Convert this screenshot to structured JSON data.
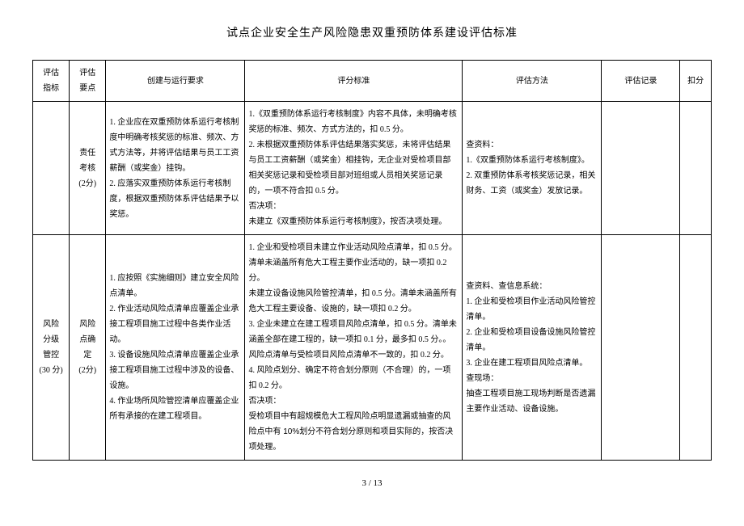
{
  "title": "试点企业安全生产风险隐患双重预防体系建设评估标准",
  "footer": "3  /  13",
  "headers": {
    "indicator": "评估\n指标",
    "point": "评估\n要点",
    "build": "创建与运行要求",
    "score": "评分标准",
    "method": "评估方法",
    "record": "评估记录",
    "deduct": "扣分"
  },
  "rows": [
    {
      "indicator": "",
      "point": "责任\n考核\n(2分)",
      "build": "1. 企业应在双重预防体系运行考核制度中明确考核奖惩的标准、频次、方式方法等，并将评估结果与员工工资薪酬（或奖金）挂钩。\n2. 应落实双重预防体系运行考核制度，根据双重预防体系评估结果予以奖惩。",
      "score_plain": "1.《双重预防体系运行考核制度》内容不具体，未明确考核奖惩的标准、频次、方式方法的，扣 0.5 分。\n2. 未根据双重预防体系评估结果落实奖惩，未将评估结果与员工工资薪酬（或奖金）相挂钩，无企业对受检项目部相关奖惩记录和受检项目部对班组或人员相关奖惩记录的，一项不符合扣 0.5 分。",
      "score_bold1": "否决项：",
      "score_bold2": "未建立《双重预防体系运行考核制度》，按否决项处理。",
      "method_head": "查资料：",
      "method_body": "1.《双重预防体系运行考核制度》。\n2. 双重预防体系考核奖惩记录，相关财务、工资（或奖金）发放记录。",
      "record": "",
      "deduct": ""
    },
    {
      "indicator": "风险\n分级\n管控\n(30 分)",
      "point": "风险\n点确\n定\n(2分)",
      "build": "1. 应按照《实施细则》建立安全风险点清单。\n2. 作业活动风险点清单应覆盖企业承接工程项目施工过程中各类作业活动。\n3. 设备设施风险点清单应覆盖企业承接工程项目施工过程中涉及的设备、设施。\n4. 作业场所风险管控清单应覆盖企业所有承接的在建工程项目。",
      "score_plain": "1. 企业和受检项目未建立作业活动风险点清单，扣 0.5 分。清单未涵盖所有危大工程主要作业活动的，缺一项扣 0.2 分。\n未建立设备设施风险管控清单，扣 0.5 分。清单未涵盖所有危大工程主要设备、设施的，缺一项扣 0.2 分。\n3. 企业未建立在建工程项目风险点清单，扣 0.5 分。清单未涵盖全部在建工程的，缺一项扣 0.1 分，最多扣 0.5 分。。风险点清单与受检项目风险点清单不一致的，扣 0.2 分。\n4. 风险点划分、确定不符合划分原则（不合理）的，一项扣 0.2 分。",
      "score_bold1": "否决项：",
      "score_bold2": "受检项目中有超规模危大工程风险点明显遗漏或抽查的风险点中有 10%划分不符合划分原则和项目实际的，按否决项处理。",
      "method_head": "查资料、查信息系统：",
      "method_body": "1. 企业和受检项目作业活动风险管控清单。\n2. 企业和受检项目设备设施风险管控清单。\n3. 企业在建工程项目风险点清单。",
      "method_head2": "查现场：",
      "method_body2": "抽查工程项目施工现场判断是否遗漏主要作业活动、设备设施。",
      "record": "",
      "deduct": ""
    }
  ]
}
